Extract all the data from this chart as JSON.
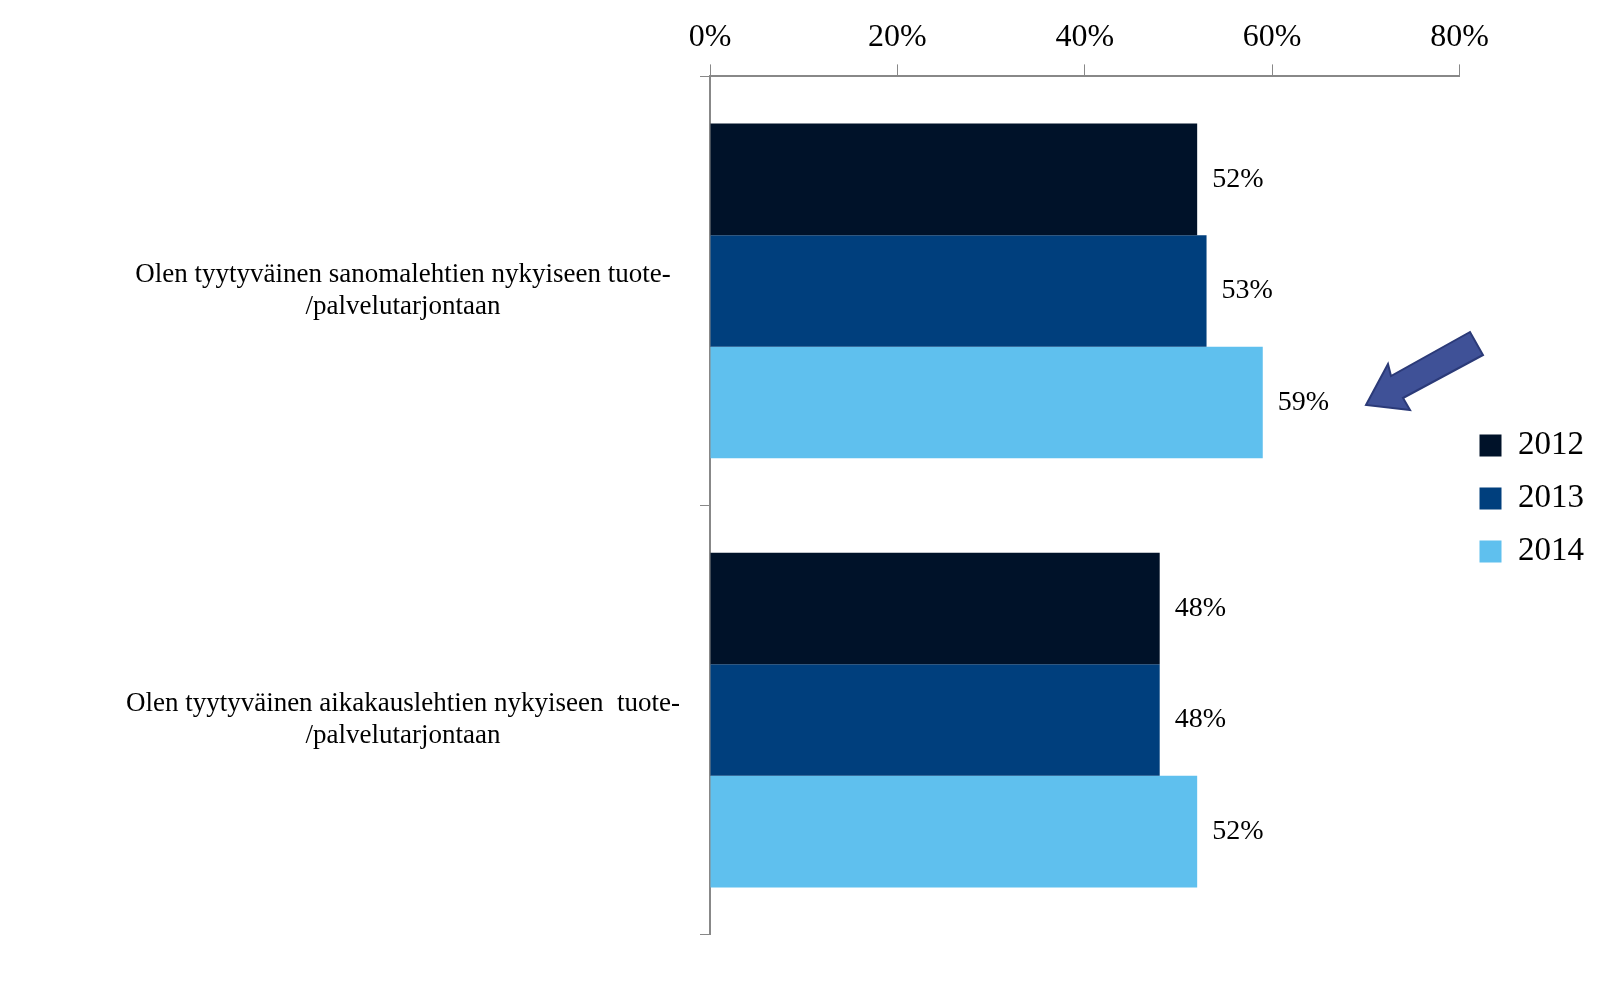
{
  "chart_data": {
    "type": "bar",
    "orientation": "horizontal",
    "categories": [
      "Olen tyytyväinen sanomalehtien nykyiseen tuote-/palvelutarjontaan",
      "Olen tyytyväinen aikakauslehtien nykyiseen  tuote-/palvelutarjontaan"
    ],
    "series": [
      {
        "name": "2012",
        "color": "#001229",
        "values": [
          52,
          48
        ],
        "value_labels": [
          "52%",
          "48%"
        ]
      },
      {
        "name": "2013",
        "color": "#003f7d",
        "values": [
          53,
          48
        ],
        "value_labels": [
          "53%",
          "48%"
        ]
      },
      {
        "name": "2014",
        "color": "#5fc0ee",
        "values": [
          59,
          52
        ],
        "value_labels": [
          "59%",
          "52%"
        ]
      }
    ],
    "xlim": [
      0,
      80
    ],
    "xticks": [
      {
        "value": 0,
        "label": "0%"
      },
      {
        "value": 20,
        "label": "20%"
      },
      {
        "value": 40,
        "label": "40%"
      },
      {
        "value": 60,
        "label": "60%"
      },
      {
        "value": 80,
        "label": "80%"
      }
    ],
    "grid": false,
    "legend": "right"
  }
}
